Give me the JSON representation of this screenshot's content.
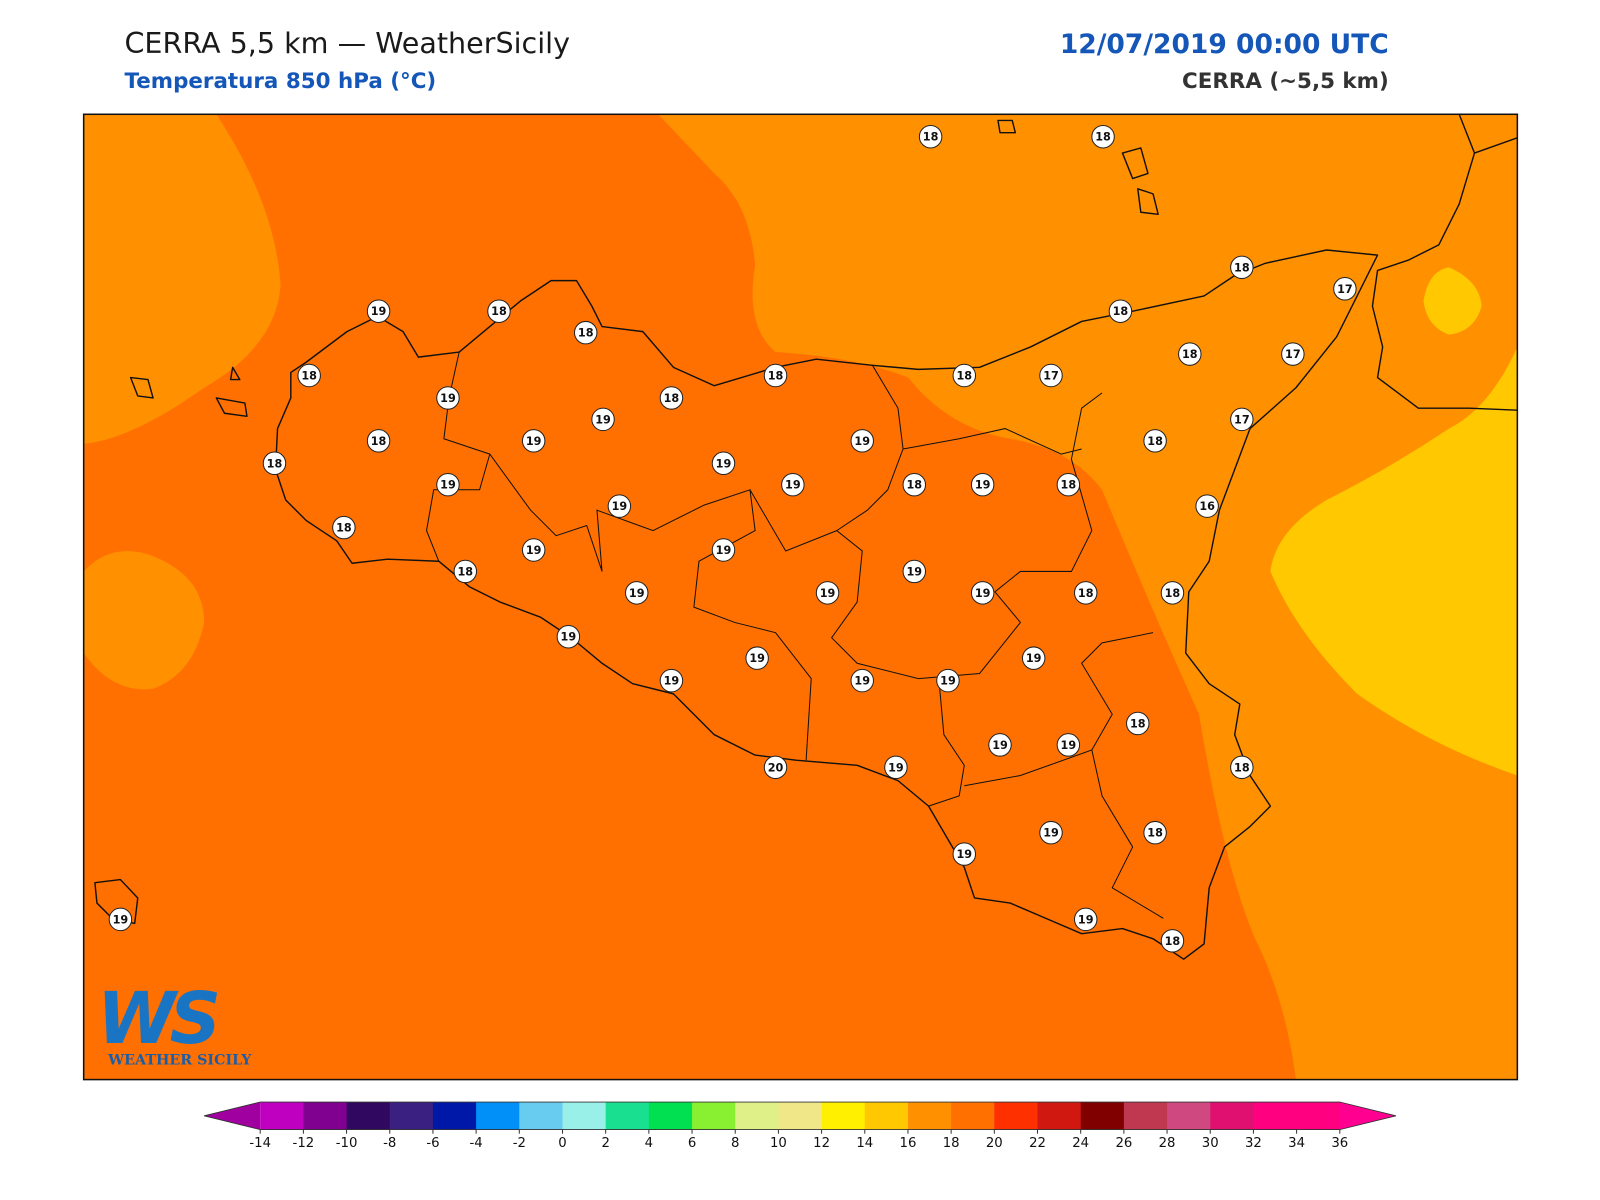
{
  "header": {
    "title": "CERRA 5,5 km — WeatherSicily",
    "subtitle": "Temperatura 850 hPa (°C)",
    "datetime": "12/07/2019 00:00 UTC",
    "model": "CERRA (~5,5 km)"
  },
  "stations": [
    18,
    18,
    18,
    17,
    19,
    18,
    18,
    18,
    18,
    18,
    18,
    17,
    18,
    17,
    19,
    18,
    19,
    17,
    18,
    19,
    19,
    18,
    18,
    19,
    19,
    19,
    18,
    19,
    18,
    19,
    16,
    18,
    19,
    19,
    19,
    18,
    19,
    19,
    19,
    18,
    18,
    19,
    19,
    19,
    19,
    19,
    19,
    18,
    19,
    19,
    20,
    19,
    18,
    19,
    19,
    18,
    19,
    19,
    18
  ],
  "colorbar": {
    "ticks": [
      -14,
      -12,
      -10,
      -8,
      -6,
      -4,
      -2,
      0,
      2,
      4,
      6,
      8,
      10,
      12,
      14,
      16,
      18,
      20,
      22,
      24,
      26,
      28,
      30,
      32,
      34,
      36
    ],
    "colors": [
      "#c000c0",
      "#800090",
      "#300860",
      "#3a2080",
      "#0018a8",
      "#0090f8",
      "#68ccf0",
      "#98f0e8",
      "#18e090",
      "#00e050",
      "#88f030",
      "#e0f088",
      "#f0e888",
      "#fff000",
      "#ffc800",
      "#ff9000",
      "#ff7000",
      "#ff3000",
      "#d01810",
      "#800000",
      "#c03850",
      "#d04880",
      "#e01070",
      "#ff0080"
    ],
    "under": "#a000a0",
    "over": "#ff0090"
  },
  "logo": {
    "mark": "WS",
    "text": "WEATHER SICILY"
  }
}
